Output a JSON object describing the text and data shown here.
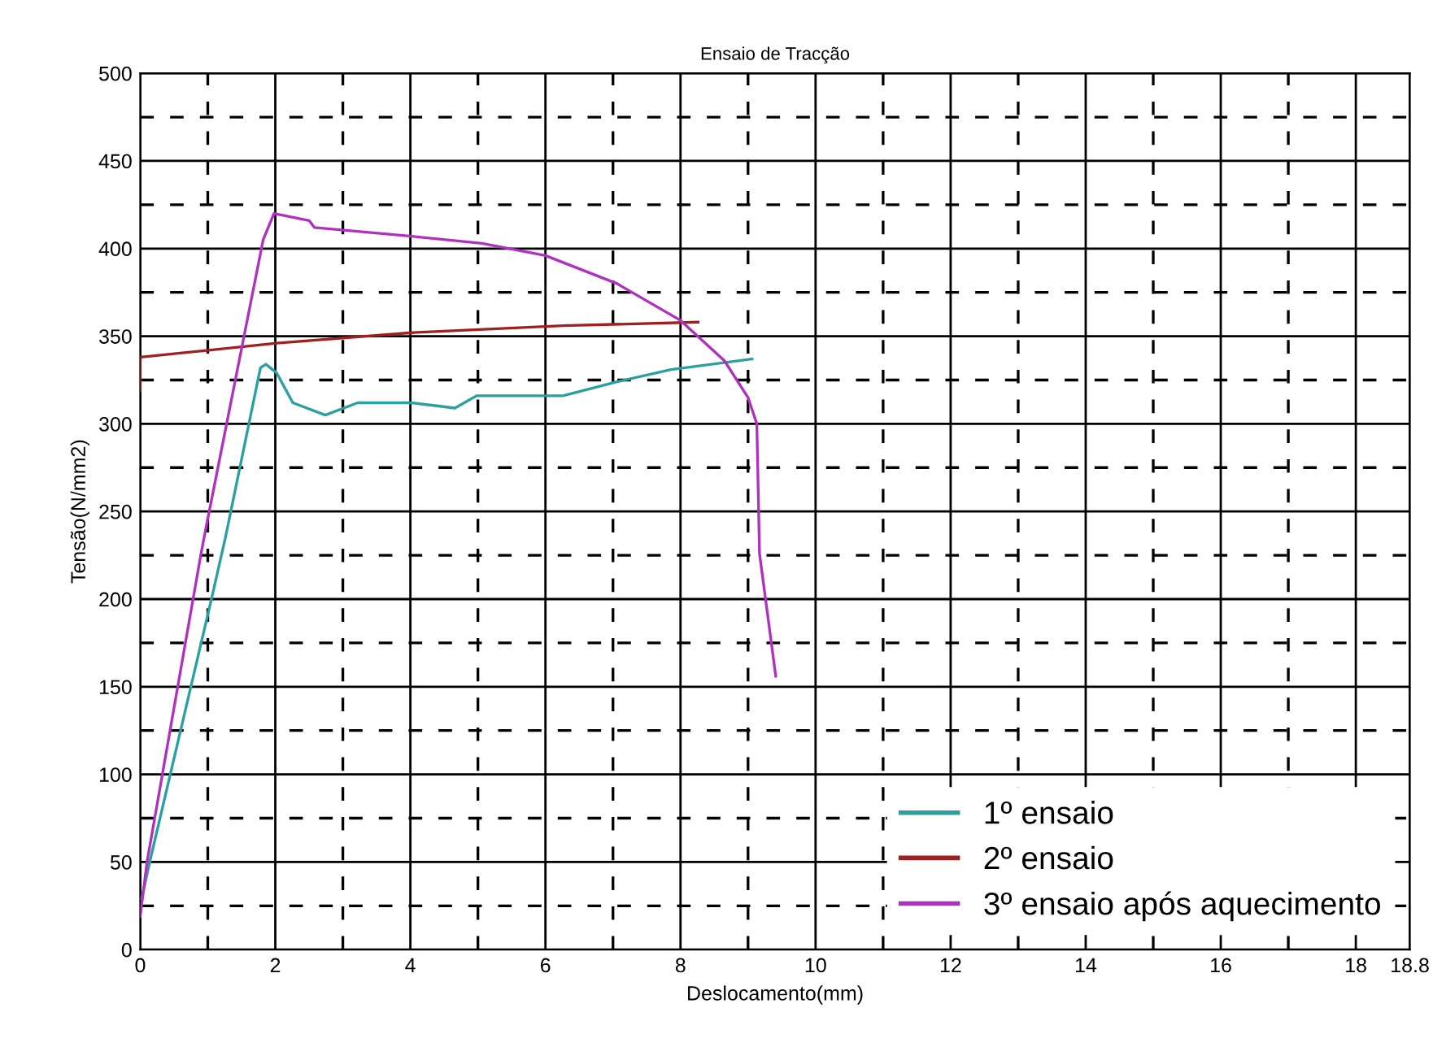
{
  "chart_data": {
    "type": "line",
    "title": "Ensaio de Tracção",
    "xlabel": "Deslocamento(mm)",
    "ylabel": "Tensão(N/mm2)",
    "xlim": [
      0,
      18.8
    ],
    "ylim": [
      0,
      500
    ],
    "xticks": [
      0,
      {
        "value": 1,
        "label": null
      },
      2,
      {
        "value": 3,
        "label": null
      },
      4,
      {
        "value": 5,
        "label": null
      },
      6,
      {
        "value": 7,
        "label": null
      },
      8,
      {
        "value": 9,
        "label": null
      },
      10,
      {
        "value": 11,
        "label": null
      },
      12,
      {
        "value": 13,
        "label": null
      },
      14,
      {
        "value": 15,
        "label": null
      },
      16,
      {
        "value": 17,
        "label": null
      },
      18,
      18.8
    ],
    "yticks": [
      0,
      {
        "value": 25,
        "label": null
      },
      50,
      {
        "value": 75,
        "label": null
      },
      100,
      {
        "value": 125,
        "label": null
      },
      150,
      {
        "value": 175,
        "label": null
      },
      200,
      {
        "value": 225,
        "label": null
      },
      250,
      {
        "value": 275,
        "label": null
      },
      300,
      {
        "value": 325,
        "label": null
      },
      350,
      {
        "value": 375,
        "label": null
      },
      400,
      {
        "value": 425,
        "label": null
      },
      450,
      {
        "value": 475,
        "label": null
      },
      500
    ],
    "grid": true,
    "legend": "bottom right",
    "line_style": "solid",
    "marker": "none",
    "series": [
      {
        "name": "1º ensaio",
        "color": "#2aa0a0",
        "x": [
          0.02,
          0.14,
          1.06,
          1.26,
          1.78,
          1.86,
          2.02,
          2.26,
          2.74,
          3.22,
          4.02,
          4.66,
          4.98,
          6.26,
          7.06,
          7.86,
          9.06
        ],
        "values": [
          29,
          50,
          201,
          235,
          332,
          334,
          329,
          312,
          305,
          312,
          312,
          309,
          316,
          316,
          324,
          331,
          337
        ]
      },
      {
        "name": "2º ensaio",
        "color": "#a02020",
        "x": [
          0,
          0,
          2.02,
          4.02,
          6.26,
          8.26
        ],
        "values": [
          319,
          338,
          346,
          352,
          356,
          358
        ]
      },
      {
        "name": "3º ensaio após aquecimento",
        "color": "#b030c0",
        "x": [
          0,
          0.1,
          0.9,
          0.98,
          1.82,
          1.98,
          2.5,
          2.58,
          4.02,
          5.06,
          6.0,
          7.06,
          8.0,
          8.65,
          9.0,
          9.13,
          9.17,
          9.41
        ],
        "values": [
          19,
          50,
          226,
          242,
          405,
          420,
          416,
          412,
          407,
          403,
          396,
          380,
          359,
          336,
          315,
          300,
          226,
          156
        ]
      }
    ]
  }
}
